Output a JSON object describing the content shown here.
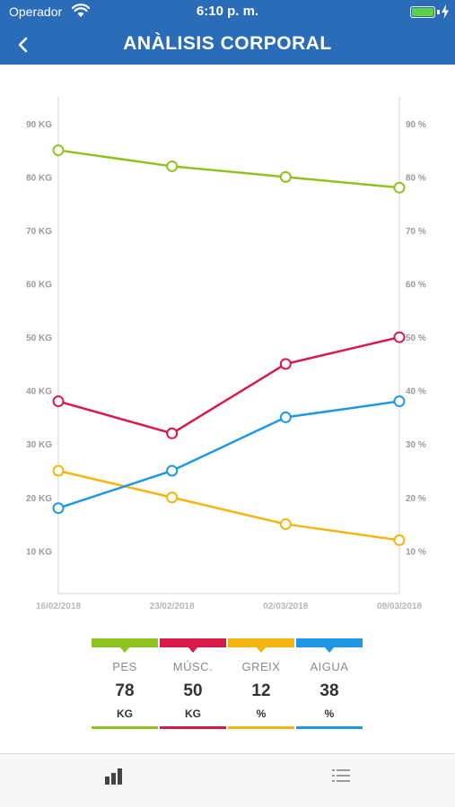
{
  "status_bar": {
    "carrier": "Operador",
    "time": "6:10 p. m.",
    "battery_level": 1.0
  },
  "nav": {
    "back_icon": "chevron-left-icon",
    "title": "ANÀLISIS CORPORAL"
  },
  "chart_data": {
    "type": "line",
    "categories": [
      "16/02/2018",
      "23/02/2018",
      "02/03/2018",
      "09/03/2018"
    ],
    "y_left_ticks": [
      "10 KG",
      "20 KG",
      "30 KG",
      "40 KG",
      "50 KG",
      "60 KG",
      "70 KG",
      "80 KG",
      "90 KG"
    ],
    "y_right_ticks": [
      "10 %",
      "20 %",
      "30 %",
      "40 %",
      "50 %",
      "60 %",
      "70 %",
      "80 %",
      "90 %"
    ],
    "ylim": [
      2,
      95
    ],
    "grid": false,
    "series": [
      {
        "name": "PES",
        "unit": "KG",
        "color": "#8dc21f",
        "values": [
          85,
          82,
          80,
          78
        ]
      },
      {
        "name": "MÚSC.",
        "unit": "KG",
        "color": "#d8194a",
        "values": [
          38,
          32,
          45,
          50
        ]
      },
      {
        "name": "GREIX",
        "unit": "%",
        "color": "#f5b50f",
        "values": [
          25,
          20,
          15,
          12
        ]
      },
      {
        "name": "AIGUA",
        "unit": "%",
        "color": "#1e98e6",
        "values": [
          18,
          25,
          35,
          38
        ]
      }
    ]
  },
  "legend": [
    {
      "label": "PES",
      "value": "78",
      "unit": "KG",
      "color": "#8dc21f"
    },
    {
      "label": "MÚSC.",
      "value": "50",
      "unit": "KG",
      "color": "#d8194a"
    },
    {
      "label": "GREIX",
      "value": "12",
      "unit": "%",
      "color": "#f5b50f"
    },
    {
      "label": "AIGUA",
      "value": "38",
      "unit": "%",
      "color": "#1e98e6"
    }
  ],
  "tabbar": {
    "tabs": [
      {
        "icon": "bar-chart-icon",
        "selected": true
      },
      {
        "icon": "list-icon",
        "selected": false
      }
    ]
  }
}
